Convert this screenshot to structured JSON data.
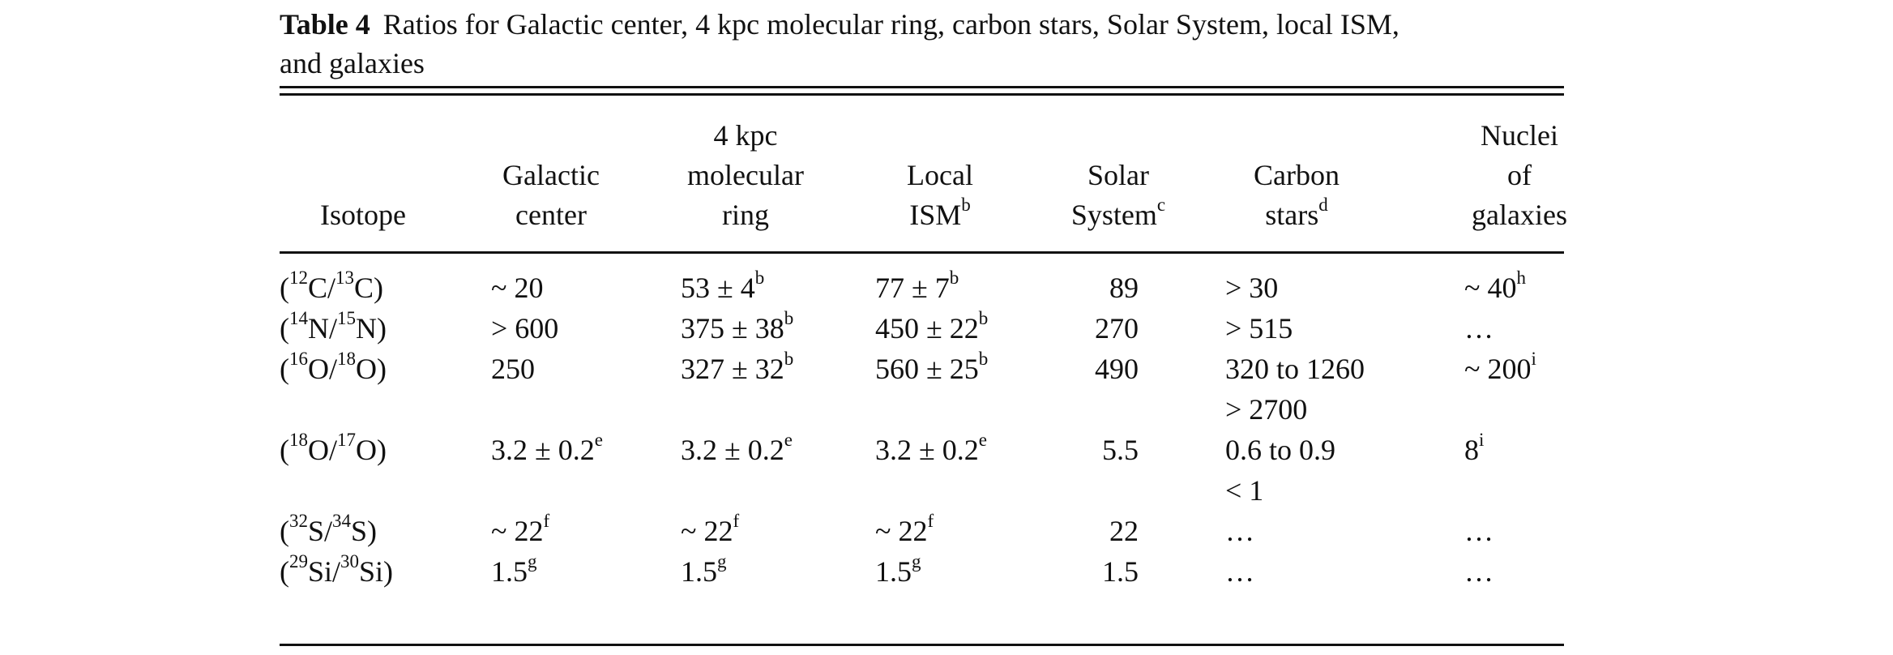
{
  "caption": {
    "label": "Table 4",
    "text": "Ratios for Galactic center, 4 kpc molecular ring, carbon stars, Solar System, local ISM,",
    "text_line2": "and galaxies"
  },
  "header": {
    "isotope": "Isotope",
    "galactic_center": [
      "Galactic",
      "center"
    ],
    "molecular_ring": [
      "4 kpc",
      "molecular",
      "ring"
    ],
    "local_ism": {
      "line1": "Local",
      "line2": "ISM",
      "sup": "b"
    },
    "solar_system": {
      "line1": "Solar",
      "line2": "System",
      "sup": "c"
    },
    "carbon_stars": {
      "line1": "Carbon",
      "line2": "stars",
      "sup": "d"
    },
    "nuclei": [
      "Nuclei",
      "of",
      "galaxies"
    ]
  },
  "rows": [
    {
      "iso": [
        "(",
        "12",
        "C/",
        "13",
        "C)"
      ],
      "gc": "~ 20",
      "gc_sup": "",
      "ring": "53 ± 4",
      "ring_sup": "b",
      "ism": "77 ± 7",
      "ism_sup": "b",
      "solar": "89",
      "carbon": "> 30",
      "nuclei": "~ 40",
      "nuclei_sup": "h"
    },
    {
      "iso": [
        "(",
        "14",
        "N/",
        "15",
        "N)"
      ],
      "gc": "> 600",
      "gc_sup": "",
      "ring": "375 ± 38",
      "ring_sup": "b",
      "ism": "450 ± 22",
      "ism_sup": "b",
      "solar": "270",
      "carbon": "> 515",
      "nuclei": "…",
      "nuclei_sup": ""
    },
    {
      "iso": [
        "(",
        "16",
        "O/",
        "18",
        "O)"
      ],
      "gc": "250",
      "gc_sup": "",
      "ring": "327 ± 32",
      "ring_sup": "b",
      "ism": "560 ± 25",
      "ism_sup": "b",
      "solar": "490",
      "carbon": "320  to  1260",
      "nuclei": "~ 200",
      "nuclei_sup": "i"
    },
    {
      "iso": [
        "",
        "",
        "",
        "",
        ""
      ],
      "gc": "",
      "gc_sup": "",
      "ring": "",
      "ring_sup": "",
      "ism": "",
      "ism_sup": "",
      "solar": "",
      "carbon": "> 2700",
      "nuclei": "",
      "nuclei_sup": ""
    },
    {
      "iso": [
        "(",
        "18",
        "O/",
        "17",
        "O)"
      ],
      "gc": "3.2 ± 0.2",
      "gc_sup": "e",
      "ring": "3.2 ± 0.2",
      "ring_sup": "e",
      "ism": "3.2 ± 0.2",
      "ism_sup": "e",
      "solar": "5.5",
      "carbon": "0.6  to  0.9",
      "nuclei": "8",
      "nuclei_sup": "i"
    },
    {
      "iso": [
        "",
        "",
        "",
        "",
        ""
      ],
      "gc": "",
      "gc_sup": "",
      "ring": "",
      "ring_sup": "",
      "ism": "",
      "ism_sup": "",
      "solar": "",
      "carbon": "< 1",
      "nuclei": "",
      "nuclei_sup": ""
    },
    {
      "iso": [
        "(",
        "32",
        "S/",
        "34",
        "S)"
      ],
      "gc": "~ 22",
      "gc_sup": "f",
      "ring": "~ 22",
      "ring_sup": "f",
      "ism": "~ 22",
      "ism_sup": "f",
      "solar": "22",
      "carbon": "…",
      "nuclei": "…",
      "nuclei_sup": ""
    },
    {
      "iso": [
        "(",
        "29",
        "Si/",
        "30",
        "Si)"
      ],
      "gc": "1.5",
      "gc_sup": "g",
      "ring": "1.5",
      "ring_sup": "g",
      "ism": "1.5",
      "ism_sup": "g",
      "solar": "1.5",
      "carbon": "…",
      "nuclei": "…",
      "nuclei_sup": ""
    }
  ]
}
